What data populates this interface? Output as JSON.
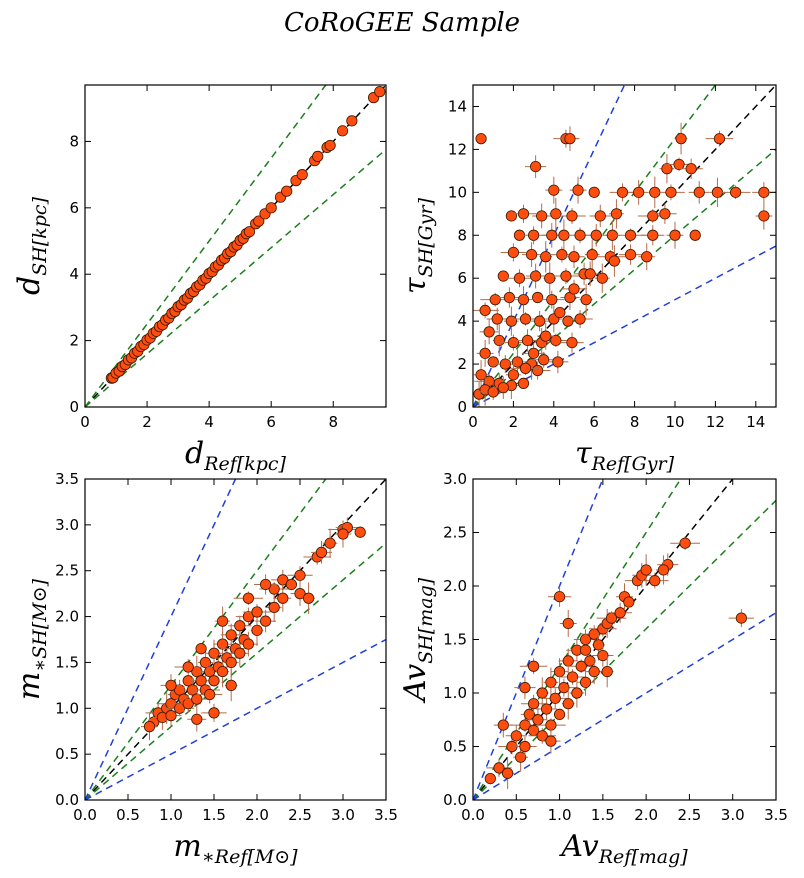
{
  "title": "CoRoGEE Sample",
  "colors": {
    "point_fill": "#ff4d0f",
    "point_edge": "#3a1a00",
    "error_bar": "#b36b4a",
    "one_to_one": "#000000",
    "inner_band": "#1a7f1a",
    "outer_band": "#1f3fd6"
  },
  "chart_data": [
    {
      "type": "scatter",
      "panel": "top-left",
      "xlabel_main": "d",
      "xlabel_sub": "Ref[kpc]",
      "ylabel_main": "d",
      "ylabel_sub": "SH[kpc]",
      "xlim": [
        0,
        9.7
      ],
      "ylim": [
        0,
        9.7
      ],
      "xticks": [
        0,
        2,
        4,
        6,
        8
      ],
      "yticks": [
        0,
        2,
        4,
        6,
        8
      ],
      "lines": [
        {
          "kind": "one-to-one",
          "slope": 1.0,
          "color": "#000000"
        },
        {
          "kind": "inner",
          "slope": 1.25,
          "color": "#1a7f1a"
        },
        {
          "kind": "inner",
          "slope": 0.8,
          "color": "#1a7f1a"
        }
      ],
      "points": [
        [
          0.85,
          0.87
        ],
        [
          0.9,
          0.88
        ],
        [
          1.0,
          1.02
        ],
        [
          1.1,
          1.08
        ],
        [
          1.2,
          1.22
        ],
        [
          1.3,
          1.28
        ],
        [
          1.4,
          1.42
        ],
        [
          1.5,
          1.48
        ],
        [
          1.6,
          1.62
        ],
        [
          1.7,
          1.68
        ],
        [
          1.8,
          1.82
        ],
        [
          1.9,
          1.88
        ],
        [
          2.0,
          2.02
        ],
        [
          2.1,
          2.08
        ],
        [
          2.2,
          2.22
        ],
        [
          2.3,
          2.28
        ],
        [
          2.4,
          2.42
        ],
        [
          2.5,
          2.48
        ],
        [
          2.6,
          2.62
        ],
        [
          2.7,
          2.68
        ],
        [
          2.8,
          2.82
        ],
        [
          2.9,
          2.88
        ],
        [
          3.0,
          3.02
        ],
        [
          3.1,
          3.08
        ],
        [
          3.2,
          3.22
        ],
        [
          3.3,
          3.28
        ],
        [
          3.4,
          3.42
        ],
        [
          3.5,
          3.48
        ],
        [
          3.6,
          3.62
        ],
        [
          3.7,
          3.68
        ],
        [
          3.8,
          3.82
        ],
        [
          3.9,
          3.88
        ],
        [
          4.0,
          4.02
        ],
        [
          4.1,
          4.08
        ],
        [
          4.2,
          4.22
        ],
        [
          4.3,
          4.28
        ],
        [
          4.4,
          4.42
        ],
        [
          4.5,
          4.48
        ],
        [
          4.6,
          4.62
        ],
        [
          4.7,
          4.68
        ],
        [
          4.8,
          4.82
        ],
        [
          4.9,
          4.88
        ],
        [
          5.0,
          5.02
        ],
        [
          5.1,
          5.08
        ],
        [
          5.2,
          5.22
        ],
        [
          5.3,
          5.28
        ],
        [
          5.5,
          5.52
        ],
        [
          5.6,
          5.6
        ],
        [
          5.8,
          5.82
        ],
        [
          6.0,
          6.0
        ],
        [
          6.3,
          6.32
        ],
        [
          6.5,
          6.5
        ],
        [
          6.8,
          6.82
        ],
        [
          7.0,
          7.0
        ],
        [
          7.4,
          7.42
        ],
        [
          7.5,
          7.55
        ],
        [
          7.8,
          7.82
        ],
        [
          7.9,
          7.88
        ],
        [
          8.3,
          8.32
        ],
        [
          8.6,
          8.62
        ],
        [
          9.3,
          9.32
        ],
        [
          9.5,
          9.5
        ]
      ]
    },
    {
      "type": "scatter",
      "panel": "top-right",
      "xlabel_main": "τ",
      "xlabel_sub": "Ref[Gyr]",
      "ylabel_main": "τ",
      "ylabel_sub": "SH[Gyr]",
      "xlim": [
        0,
        15
      ],
      "ylim": [
        0,
        15
      ],
      "xticks": [
        0,
        2,
        4,
        6,
        8,
        10,
        12,
        14
      ],
      "yticks": [
        0,
        2,
        4,
        6,
        8,
        10,
        12,
        14
      ],
      "lines": [
        {
          "kind": "one-to-one",
          "slope": 1.0,
          "color": "#000000"
        },
        {
          "kind": "inner",
          "slope": 1.25,
          "color": "#1a7f1a"
        },
        {
          "kind": "inner",
          "slope": 0.8,
          "color": "#1a7f1a"
        },
        {
          "kind": "outer",
          "slope": 2.0,
          "color": "#1f3fd6"
        },
        {
          "kind": "outer",
          "slope": 0.5,
          "color": "#1f3fd6"
        }
      ],
      "points": [
        [
          0.4,
          12.5
        ],
        [
          4.6,
          12.5
        ],
        [
          4.8,
          12.5
        ],
        [
          10.3,
          12.5
        ],
        [
          12.2,
          12.5
        ],
        [
          3.1,
          11.2
        ],
        [
          9.6,
          11.1
        ],
        [
          10.2,
          11.3
        ],
        [
          10.8,
          11.1
        ],
        [
          5.2,
          10.1
        ],
        [
          6.0,
          10.0
        ],
        [
          7.4,
          10.0
        ],
        [
          8.2,
          10.0
        ],
        [
          9.0,
          10.0
        ],
        [
          9.8,
          10.0
        ],
        [
          11.2,
          10.0
        ],
        [
          12.1,
          10.0
        ],
        [
          13.0,
          10.0
        ],
        [
          14.4,
          10.0
        ],
        [
          4.0,
          10.1
        ],
        [
          1.9,
          8.9
        ],
        [
          2.5,
          9.0
        ],
        [
          3.4,
          8.9
        ],
        [
          4.1,
          9.0
        ],
        [
          4.9,
          8.9
        ],
        [
          6.3,
          8.9
        ],
        [
          7.1,
          9.0
        ],
        [
          8.9,
          8.9
        ],
        [
          9.5,
          9.0
        ],
        [
          14.4,
          8.9
        ],
        [
          2.3,
          8.0
        ],
        [
          3.0,
          8.0
        ],
        [
          3.9,
          8.0
        ],
        [
          4.5,
          8.0
        ],
        [
          5.3,
          8.0
        ],
        [
          6.1,
          8.0
        ],
        [
          6.9,
          8.0
        ],
        [
          7.8,
          8.0
        ],
        [
          8.9,
          8.0
        ],
        [
          10.0,
          8.0
        ],
        [
          11.0,
          8.0
        ],
        [
          2.0,
          7.2
        ],
        [
          2.9,
          7.1
        ],
        [
          3.6,
          7.0
        ],
        [
          4.4,
          7.1
        ],
        [
          5.0,
          7.0
        ],
        [
          5.9,
          7.1
        ],
        [
          6.8,
          7.0
        ],
        [
          7.8,
          7.1
        ],
        [
          8.6,
          7.0
        ],
        [
          1.5,
          6.1
        ],
        [
          2.3,
          6.0
        ],
        [
          3.1,
          6.1
        ],
        [
          3.8,
          6.0
        ],
        [
          4.6,
          6.1
        ],
        [
          5.5,
          6.2
        ],
        [
          6.4,
          6.0
        ],
        [
          1.1,
          5.0
        ],
        [
          1.8,
          5.1
        ],
        [
          2.5,
          5.0
        ],
        [
          3.2,
          5.1
        ],
        [
          3.9,
          5.0
        ],
        [
          4.8,
          5.1
        ],
        [
          5.6,
          5.0
        ],
        [
          0.6,
          4.5
        ],
        [
          1.2,
          4.1
        ],
        [
          1.9,
          4.0
        ],
        [
          2.6,
          4.1
        ],
        [
          3.3,
          4.0
        ],
        [
          4.0,
          4.1
        ],
        [
          4.7,
          4.0
        ],
        [
          5.3,
          4.1
        ],
        [
          0.8,
          3.5
        ],
        [
          1.3,
          3.1
        ],
        [
          2.0,
          3.0
        ],
        [
          2.7,
          3.1
        ],
        [
          3.4,
          3.0
        ],
        [
          4.1,
          3.1
        ],
        [
          4.9,
          3.0
        ],
        [
          0.6,
          2.5
        ],
        [
          1.0,
          2.1
        ],
        [
          1.6,
          2.0
        ],
        [
          2.2,
          2.1
        ],
        [
          2.9,
          2.0
        ],
        [
          3.5,
          2.2
        ],
        [
          4.2,
          2.1
        ],
        [
          0.4,
          1.5
        ],
        [
          0.8,
          1.2
        ],
        [
          1.3,
          1.1
        ],
        [
          1.9,
          1.0
        ],
        [
          2.5,
          1.1
        ],
        [
          3.2,
          1.7
        ],
        [
          0.3,
          0.6
        ],
        [
          0.6,
          0.8
        ],
        [
          1.0,
          0.7
        ],
        [
          1.5,
          0.9
        ],
        [
          2.0,
          1.5
        ],
        [
          2.6,
          1.8
        ],
        [
          3.0,
          2.5
        ],
        [
          3.6,
          3.3
        ],
        [
          4.3,
          4.4
        ],
        [
          5.0,
          5.5
        ],
        [
          5.8,
          6.2
        ],
        [
          7.0,
          6.8
        ]
      ]
    },
    {
      "type": "scatter",
      "panel": "bottom-left",
      "xlabel_main": "m",
      "xlabel_sub": "∗Ref[M⊙]",
      "ylabel_main": "m",
      "ylabel_sub": "∗SH[M⊙]",
      "xlim": [
        0,
        3.5
      ],
      "ylim": [
        0,
        3.5
      ],
      "xticks": [
        0.0,
        0.5,
        1.0,
        1.5,
        2.0,
        2.5,
        3.0,
        3.5
      ],
      "yticks": [
        0.0,
        0.5,
        1.0,
        1.5,
        2.0,
        2.5,
        3.0,
        3.5
      ],
      "tick_decimals": 1,
      "lines": [
        {
          "kind": "one-to-one",
          "slope": 1.0,
          "color": "#000000"
        },
        {
          "kind": "inner",
          "slope": 1.25,
          "color": "#1a7f1a"
        },
        {
          "kind": "inner",
          "slope": 0.8,
          "color": "#1a7f1a"
        },
        {
          "kind": "outer",
          "slope": 2.0,
          "color": "#1f3fd6"
        },
        {
          "kind": "outer",
          "slope": 0.5,
          "color": "#1f3fd6"
        }
      ],
      "points": [
        [
          0.8,
          0.85
        ],
        [
          0.85,
          0.95
        ],
        [
          0.9,
          0.9
        ],
        [
          0.95,
          1.0
        ],
        [
          1.0,
          1.05
        ],
        [
          1.0,
          0.92
        ],
        [
          1.05,
          1.15
        ],
        [
          1.1,
          1.0
        ],
        [
          1.1,
          1.2
        ],
        [
          1.15,
          1.1
        ],
        [
          1.2,
          1.3
        ],
        [
          1.2,
          1.05
        ],
        [
          1.25,
          1.2
        ],
        [
          1.3,
          1.4
        ],
        [
          1.3,
          1.1
        ],
        [
          1.35,
          1.3
        ],
        [
          1.4,
          1.5
        ],
        [
          1.4,
          1.2
        ],
        [
          1.45,
          1.4
        ],
        [
          1.5,
          1.6
        ],
        [
          1.5,
          1.3
        ],
        [
          1.55,
          1.45
        ],
        [
          1.6,
          1.7
        ],
        [
          1.6,
          1.4
        ],
        [
          1.65,
          1.55
        ],
        [
          1.7,
          1.8
        ],
        [
          1.7,
          1.5
        ],
        [
          1.75,
          1.65
        ],
        [
          1.8,
          1.9
        ],
        [
          1.8,
          1.6
        ],
        [
          1.85,
          1.75
        ],
        [
          1.9,
          2.0
        ],
        [
          1.9,
          1.7
        ],
        [
          2.0,
          1.85
        ],
        [
          2.0,
          2.05
        ],
        [
          2.1,
          1.95
        ],
        [
          2.2,
          2.1
        ],
        [
          2.2,
          2.3
        ],
        [
          2.3,
          2.4
        ],
        [
          2.3,
          2.2
        ],
        [
          2.4,
          2.35
        ],
        [
          2.5,
          2.45
        ],
        [
          2.5,
          2.25
        ],
        [
          2.6,
          2.2
        ],
        [
          2.7,
          2.65
        ],
        [
          2.75,
          2.7
        ],
        [
          2.85,
          2.8
        ],
        [
          3.0,
          2.95
        ],
        [
          3.05,
          2.97
        ],
        [
          3.0,
          2.9
        ],
        [
          3.2,
          2.92
        ],
        [
          1.5,
          0.95
        ],
        [
          1.3,
          0.88
        ],
        [
          1.7,
          1.25
        ],
        [
          1.2,
          1.45
        ],
        [
          1.0,
          1.25
        ],
        [
          1.6,
          1.95
        ],
        [
          1.9,
          2.2
        ],
        [
          2.1,
          2.35
        ],
        [
          0.75,
          0.8
        ],
        [
          1.35,
          1.65
        ],
        [
          1.45,
          1.15
        ]
      ]
    },
    {
      "type": "scatter",
      "panel": "bottom-right",
      "xlabel_main": "Av",
      "xlabel_sub": "Ref[mag]",
      "ylabel_main": "Av",
      "ylabel_sub": "SH[mag]",
      "xlim": [
        0,
        3.5
      ],
      "ylim": [
        0,
        3.0
      ],
      "xticks": [
        0.0,
        0.5,
        1.0,
        1.5,
        2.0,
        2.5,
        3.0,
        3.5
      ],
      "yticks": [
        0.0,
        0.5,
        1.0,
        1.5,
        2.0,
        2.5,
        3.0
      ],
      "tick_decimals": 1,
      "lines": [
        {
          "kind": "one-to-one",
          "slope": 1.0,
          "color": "#000000"
        },
        {
          "kind": "inner",
          "slope": 1.25,
          "color": "#1a7f1a"
        },
        {
          "kind": "inner",
          "slope": 0.8,
          "color": "#1a7f1a"
        },
        {
          "kind": "outer",
          "slope": 2.0,
          "color": "#1f3fd6"
        },
        {
          "kind": "outer",
          "slope": 0.5,
          "color": "#1f3fd6"
        }
      ],
      "points": [
        [
          0.2,
          0.2
        ],
        [
          0.3,
          0.3
        ],
        [
          0.35,
          0.7
        ],
        [
          0.4,
          0.25
        ],
        [
          0.45,
          0.5
        ],
        [
          0.5,
          0.6
        ],
        [
          0.55,
          0.4
        ],
        [
          0.6,
          0.7
        ],
        [
          0.6,
          0.5
        ],
        [
          0.65,
          0.8
        ],
        [
          0.7,
          0.65
        ],
        [
          0.7,
          0.9
        ],
        [
          0.75,
          0.75
        ],
        [
          0.8,
          1.0
        ],
        [
          0.8,
          0.6
        ],
        [
          0.85,
          0.85
        ],
        [
          0.9,
          1.1
        ],
        [
          0.9,
          0.7
        ],
        [
          0.95,
          0.95
        ],
        [
          1.0,
          1.2
        ],
        [
          1.0,
          0.8
        ],
        [
          1.05,
          1.05
        ],
        [
          1.1,
          1.3
        ],
        [
          1.1,
          0.9
        ],
        [
          1.15,
          1.15
        ],
        [
          1.2,
          1.4
        ],
        [
          1.2,
          1.0
        ],
        [
          1.25,
          1.25
        ],
        [
          1.3,
          1.5
        ],
        [
          1.3,
          1.1
        ],
        [
          1.35,
          1.3
        ],
        [
          1.4,
          1.55
        ],
        [
          1.4,
          1.2
        ],
        [
          1.45,
          1.45
        ],
        [
          1.5,
          1.6
        ],
        [
          1.5,
          1.35
        ],
        [
          1.55,
          1.65
        ],
        [
          1.6,
          1.7
        ],
        [
          1.7,
          1.75
        ],
        [
          1.75,
          1.9
        ],
        [
          1.8,
          1.85
        ],
        [
          1.9,
          2.05
        ],
        [
          1.95,
          2.1
        ],
        [
          2.0,
          2.15
        ],
        [
          2.1,
          2.05
        ],
        [
          2.25,
          2.2
        ],
        [
          2.2,
          2.15
        ],
        [
          2.45,
          2.4
        ],
        [
          1.0,
          1.9
        ],
        [
          1.1,
          1.65
        ],
        [
          1.3,
          1.4
        ],
        [
          3.1,
          1.7
        ],
        [
          0.9,
          0.55
        ],
        [
          1.55,
          1.2
        ],
        [
          0.7,
          1.25
        ],
        [
          0.6,
          1.05
        ]
      ]
    }
  ]
}
